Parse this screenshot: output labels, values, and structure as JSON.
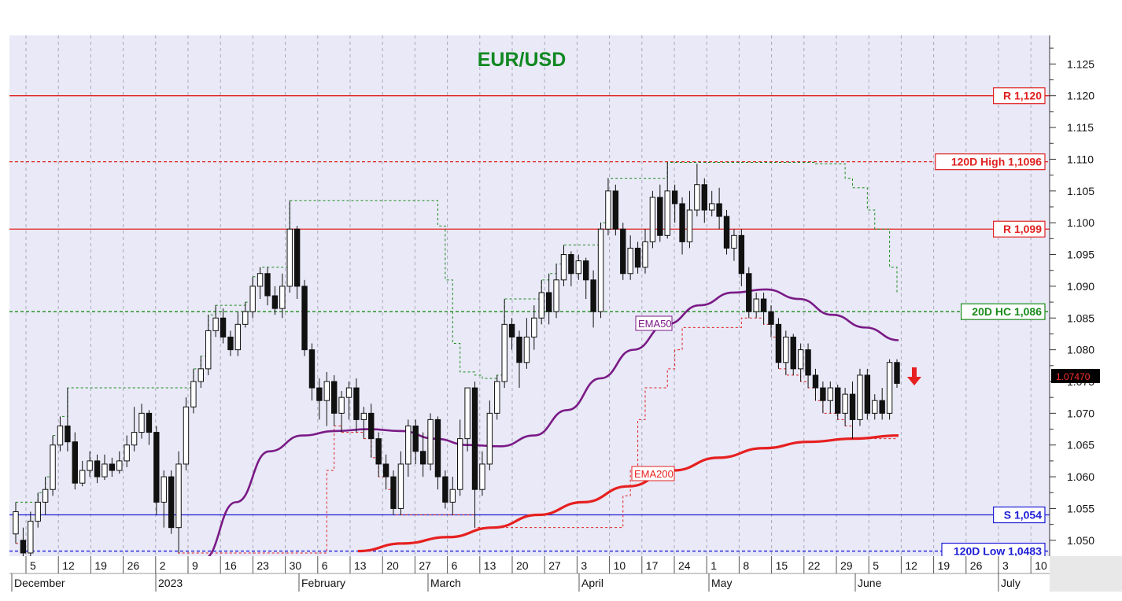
{
  "chart_data": {
    "type": "candlestick",
    "title": "EUR/USD",
    "ylim": [
      1.0475,
      1.1295
    ],
    "y_ticks": [
      "1.050",
      "1.055",
      "1.060",
      "1.065",
      "1.070",
      "1.075",
      "1.080",
      "1.085",
      "1.090",
      "1.095",
      "1.100",
      "1.105",
      "1.110",
      "1.115",
      "1.120",
      "1.125"
    ],
    "day_ticks": [
      "5",
      "12",
      "19",
      "26",
      "2",
      "9",
      "16",
      "23",
      "30",
      "6",
      "13",
      "20",
      "27",
      "6",
      "13",
      "20",
      "27",
      "3",
      "10",
      "17",
      "24",
      "1",
      "8",
      "15",
      "22",
      "29",
      "5",
      "12",
      "19",
      "26",
      "3",
      "10"
    ],
    "month_labels": [
      "December",
      "2023",
      "February",
      "March",
      "April",
      "May",
      "June",
      "July"
    ],
    "last_price": "1.07470",
    "grid": true,
    "levels": [
      {
        "label": "R 1,120",
        "value": 1.12,
        "color": "#e02020",
        "style": "solid"
      },
      {
        "label": "120D High 1,1096",
        "value": 1.1096,
        "color": "#e02020",
        "style": "dashed"
      },
      {
        "label": "R 1,099",
        "value": 1.099,
        "color": "#e02020",
        "style": "solid"
      },
      {
        "label": "20D HC 1,086",
        "value": 1.086,
        "color": "#1a8a1a",
        "style": "dashed"
      },
      {
        "label": "S 1,054",
        "value": 1.054,
        "color": "#1c1cd6",
        "style": "solid"
      },
      {
        "label": "120D Low 1,0483",
        "value": 1.0483,
        "color": "#1c1cd6",
        "style": "dashed"
      }
    ],
    "series": [
      {
        "name": "EMA50",
        "color": "#7a1a86",
        "y_start": 1.047,
        "y_end": 1.0815,
        "points": [
          1.047,
          1.056,
          1.064,
          1.0665,
          1.0672,
          1.0675,
          1.0672,
          1.066,
          1.065,
          1.0648,
          1.0665,
          1.0705,
          1.0755,
          1.08,
          1.084,
          1.087,
          1.089,
          1.0895,
          1.088,
          1.0855,
          1.0835,
          1.0815
        ]
      },
      {
        "name": "EMA200",
        "color": "#e62020",
        "points": [
          1.0483,
          1.0495,
          1.0505,
          1.052,
          1.054,
          1.056,
          1.0585,
          1.061,
          1.063,
          1.0645,
          1.0655,
          1.066,
          1.0665
        ]
      }
    ],
    "candles": [
      [
        1.051,
        1.0545,
        1.056,
        1.0495
      ],
      [
        1.05,
        1.048,
        1.052,
        1.047
      ],
      [
        1.048,
        1.053,
        1.0545,
        1.047
      ],
      [
        1.053,
        1.056,
        1.0575,
        1.052
      ],
      [
        1.056,
        1.058,
        1.06,
        1.054
      ],
      [
        1.058,
        1.065,
        1.0665,
        1.057
      ],
      [
        1.065,
        1.068,
        1.0695,
        1.064
      ],
      [
        1.068,
        1.0655,
        1.074,
        1.064
      ],
      [
        1.0655,
        1.059,
        1.067,
        1.058
      ],
      [
        1.059,
        1.061,
        1.0625,
        1.0585
      ],
      [
        1.061,
        1.0625,
        1.064,
        1.06
      ],
      [
        1.0625,
        1.06,
        1.0635,
        1.059
      ],
      [
        1.06,
        1.062,
        1.0635,
        1.0595
      ],
      [
        1.062,
        1.061,
        1.063,
        1.06
      ],
      [
        1.061,
        1.0625,
        1.064,
        1.0605
      ],
      [
        1.0625,
        1.065,
        1.0665,
        1.0615
      ],
      [
        1.065,
        1.067,
        1.071,
        1.064
      ],
      [
        1.067,
        1.07,
        1.0715,
        1.066
      ],
      [
        1.07,
        1.067,
        1.0705,
        1.065
      ],
      [
        1.067,
        1.056,
        1.068,
        1.054
      ],
      [
        1.056,
        1.06,
        1.061,
        1.052
      ],
      [
        1.06,
        1.052,
        1.061,
        1.051
      ],
      [
        1.052,
        1.062,
        1.064,
        1.048
      ],
      [
        1.062,
        1.071,
        1.0725,
        1.061
      ],
      [
        1.071,
        1.075,
        1.077,
        1.07
      ],
      [
        1.075,
        1.077,
        1.079,
        1.074
      ],
      [
        1.077,
        1.083,
        1.0855,
        1.076
      ],
      [
        1.083,
        1.085,
        1.087,
        1.082
      ],
      [
        1.085,
        1.082,
        1.0865,
        1.081
      ],
      [
        1.082,
        1.08,
        1.083,
        1.079
      ],
      [
        1.08,
        1.084,
        1.086,
        1.079
      ],
      [
        1.084,
        1.086,
        1.0875,
        1.0835
      ],
      [
        1.086,
        1.09,
        1.0915,
        1.085
      ],
      [
        1.09,
        1.092,
        1.093,
        1.088
      ],
      [
        1.092,
        1.0885,
        1.093,
        1.087
      ],
      [
        1.0885,
        1.0865,
        1.09,
        1.0855
      ],
      [
        1.0865,
        1.09,
        1.092,
        1.085
      ],
      [
        1.09,
        1.099,
        1.1035,
        1.089
      ],
      [
        1.099,
        1.09,
        1.0995,
        1.088
      ],
      [
        1.09,
        1.08,
        1.091,
        1.079
      ],
      [
        1.08,
        1.074,
        1.081,
        1.072
      ],
      [
        1.074,
        1.072,
        1.0755,
        1.069
      ],
      [
        1.072,
        1.075,
        1.0765,
        1.068
      ],
      [
        1.075,
        1.07,
        1.076,
        1.068
      ],
      [
        1.07,
        1.0725,
        1.0735,
        1.067
      ],
      [
        1.0725,
        1.074,
        1.075,
        1.069
      ],
      [
        1.074,
        1.069,
        1.0755,
        1.067
      ],
      [
        1.069,
        1.07,
        1.071,
        1.066
      ],
      [
        1.07,
        1.066,
        1.0715,
        1.063
      ],
      [
        1.066,
        1.062,
        1.067,
        1.06
      ],
      [
        1.062,
        1.06,
        1.0635,
        1.058
      ],
      [
        1.06,
        1.055,
        1.061,
        1.054
      ],
      [
        1.055,
        1.062,
        1.064,
        1.054
      ],
      [
        1.062,
        1.068,
        1.069,
        1.06
      ],
      [
        1.068,
        1.064,
        1.069,
        1.062
      ],
      [
        1.064,
        1.062,
        1.067,
        1.06
      ],
      [
        1.062,
        1.069,
        1.07,
        1.061
      ],
      [
        1.069,
        1.06,
        1.0695,
        1.058
      ],
      [
        1.06,
        1.056,
        1.061,
        1.055
      ],
      [
        1.056,
        1.058,
        1.06,
        1.054
      ],
      [
        1.058,
        1.066,
        1.069,
        1.057
      ],
      [
        1.066,
        1.074,
        1.074,
        1.064
      ],
      [
        1.074,
        1.058,
        1.075,
        1.052
      ],
      [
        1.058,
        1.062,
        1.064,
        1.057
      ],
      [
        1.062,
        1.07,
        1.072,
        1.061
      ],
      [
        1.07,
        1.075,
        1.076,
        1.069
      ],
      [
        1.075,
        1.084,
        1.088,
        1.074
      ],
      [
        1.084,
        1.082,
        1.085,
        1.08
      ],
      [
        1.082,
        1.078,
        1.083,
        1.074
      ],
      [
        1.078,
        1.082,
        1.085,
        1.077
      ],
      [
        1.082,
        1.085,
        1.087,
        1.08
      ],
      [
        1.085,
        1.089,
        1.091,
        1.084
      ],
      [
        1.089,
        1.086,
        1.092,
        1.084
      ],
      [
        1.086,
        1.091,
        1.0935,
        1.085
      ],
      [
        1.091,
        1.095,
        1.0965,
        1.09
      ],
      [
        1.095,
        1.092,
        1.0955,
        1.09
      ],
      [
        1.092,
        1.094,
        1.095,
        1.091
      ],
      [
        1.094,
        1.091,
        1.0945,
        1.088
      ],
      [
        1.091,
        1.086,
        1.0925,
        1.0835
      ],
      [
        1.086,
        1.099,
        1.1,
        1.085
      ],
      [
        1.099,
        1.105,
        1.107,
        1.098
      ],
      [
        1.105,
        1.099,
        1.106,
        1.098
      ],
      [
        1.099,
        1.092,
        1.1,
        1.091
      ],
      [
        1.092,
        1.096,
        1.098,
        1.091
      ],
      [
        1.096,
        1.093,
        1.097,
        1.092
      ],
      [
        1.093,
        1.097,
        1.099,
        1.092
      ],
      [
        1.097,
        1.104,
        1.105,
        1.096
      ],
      [
        1.104,
        1.098,
        1.106,
        1.097
      ],
      [
        1.098,
        1.105,
        1.1095,
        1.0975
      ],
      [
        1.105,
        1.103,
        1.106,
        1.1
      ],
      [
        1.103,
        1.097,
        1.104,
        1.095
      ],
      [
        1.097,
        1.102,
        1.105,
        1.096
      ],
      [
        1.102,
        1.106,
        1.1093,
        1.101
      ],
      [
        1.106,
        1.102,
        1.107,
        1.1
      ],
      [
        1.102,
        1.103,
        1.105,
        1.101
      ],
      [
        1.103,
        1.101,
        1.1055,
        1.099
      ],
      [
        1.101,
        1.096,
        1.102,
        1.095
      ],
      [
        1.096,
        1.098,
        1.099,
        1.094
      ],
      [
        1.098,
        1.092,
        1.099,
        1.09
      ],
      [
        1.092,
        1.086,
        1.093,
        1.085
      ],
      [
        1.086,
        1.088,
        1.089,
        1.085
      ],
      [
        1.088,
        1.086,
        1.089,
        1.084
      ],
      [
        1.086,
        1.084,
        1.087,
        1.082
      ],
      [
        1.084,
        1.078,
        1.085,
        1.077
      ],
      [
        1.078,
        1.082,
        1.083,
        1.076
      ],
      [
        1.082,
        1.077,
        1.0825,
        1.076
      ],
      [
        1.077,
        1.08,
        1.081,
        1.075
      ],
      [
        1.08,
        1.076,
        1.081,
        1.074
      ],
      [
        1.076,
        1.074,
        1.077,
        1.072
      ],
      [
        1.074,
        1.072,
        1.075,
        1.07
      ],
      [
        1.072,
        1.074,
        1.075,
        1.07
      ],
      [
        1.074,
        1.07,
        1.0745,
        1.069
      ],
      [
        1.07,
        1.073,
        1.074,
        1.068
      ],
      [
        1.073,
        1.069,
        1.075,
        1.066
      ],
      [
        1.069,
        1.076,
        1.077,
        1.068
      ],
      [
        1.076,
        1.07,
        1.077,
        1.069
      ],
      [
        1.07,
        1.072,
        1.073,
        1.069
      ],
      [
        1.072,
        1.07,
        1.074,
        1.069
      ],
      [
        1.07,
        1.078,
        1.0785,
        1.069
      ],
      [
        1.078,
        1.0747,
        1.0785,
        1.074
      ]
    ]
  }
}
